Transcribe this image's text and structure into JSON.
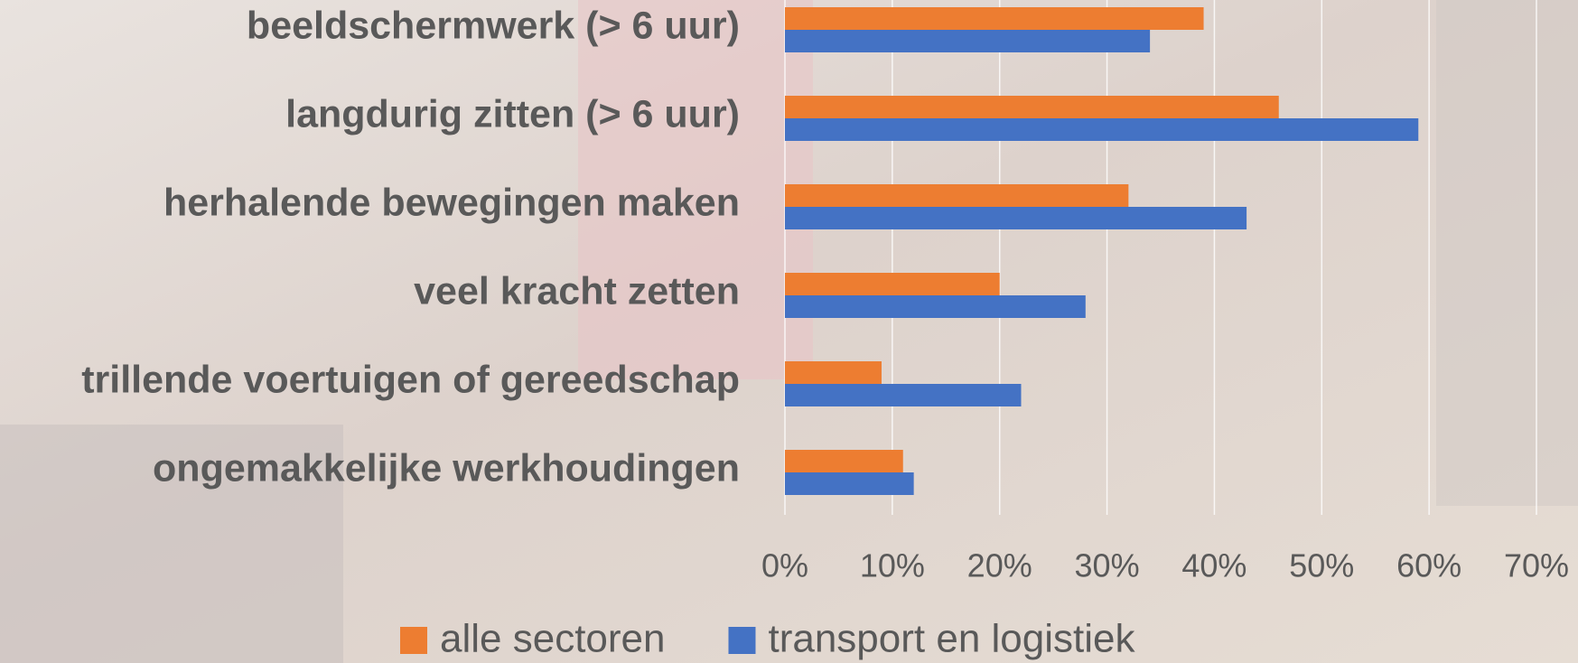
{
  "chart_data": {
    "type": "hbar",
    "categories": [
      "beeldschermwerk (> 6 uur)",
      "langdurig zitten (> 6 uur)",
      "herhalende bewegingen maken",
      "veel kracht zetten",
      "trillende voertuigen of gereedschap",
      "ongemakkelijke werkhoudingen"
    ],
    "series": [
      {
        "name": "alle sectoren",
        "color": "#ED7D31",
        "values": [
          39,
          46,
          32,
          20,
          9,
          11
        ]
      },
      {
        "name": "transport en logistiek",
        "color": "#4472C4",
        "values": [
          34,
          59,
          43,
          28,
          22,
          12
        ]
      }
    ],
    "xlim": [
      0,
      70
    ],
    "xticks": [
      {
        "value": 0,
        "label": "0%"
      },
      {
        "value": 10,
        "label": "10%"
      },
      {
        "value": 20,
        "label": "20%"
      },
      {
        "value": 30,
        "label": "30%"
      },
      {
        "value": 40,
        "label": "40%"
      },
      {
        "value": 50,
        "label": "50%"
      },
      {
        "value": 60,
        "label": "60%"
      },
      {
        "value": 70,
        "label": "70%"
      }
    ],
    "grid": true,
    "legend": "bottom"
  }
}
